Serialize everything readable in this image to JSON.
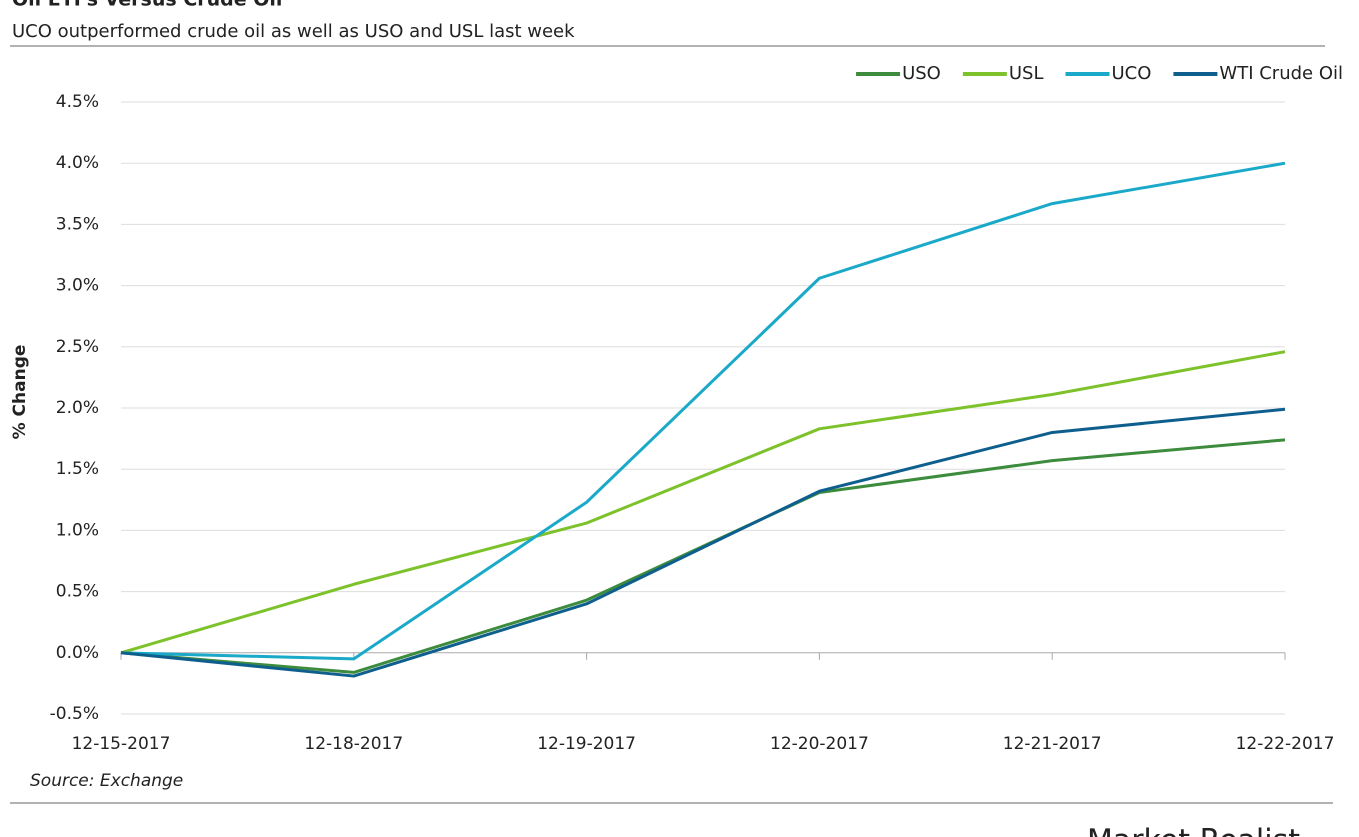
{
  "chart_data": {
    "type": "line",
    "title": "Oil ETFs Versus Crude Oil",
    "subtitle": "UCO outperformed crude oil as well as USO and USL last week",
    "y_label": "% Change",
    "source": "Source: Exchange",
    "watermark": "Market Realist",
    "categories": [
      "12-15-2017",
      "12-18-2017",
      "12-19-2017",
      "12-20-2017",
      "12-21-2017",
      "12-22-2017"
    ],
    "series": [
      {
        "name": "USO",
        "color": "#3d8b3d",
        "values": [
          0,
          -0.16,
          0.43,
          1.31,
          1.57,
          1.74
        ]
      },
      {
        "name": "USL",
        "color": "#7dc22a",
        "values": [
          0,
          0.56,
          1.06,
          1.83,
          2.11,
          2.46
        ]
      },
      {
        "name": "UCO",
        "color": "#1aa9c9",
        "values": [
          0,
          -0.05,
          1.23,
          3.06,
          3.67,
          4.0
        ]
      },
      {
        "name": "WTI Crude Oil",
        "color": "#0e5f8e",
        "values": [
          0,
          -0.19,
          0.4,
          1.32,
          1.8,
          1.99
        ]
      }
    ],
    "ylim": [
      -0.5,
      4.5
    ],
    "yticks": [
      {
        "value": -0.5,
        "label": "-0.5%"
      },
      {
        "value": 0,
        "label": "0.0%"
      },
      {
        "value": 0.5,
        "label": "0.5%"
      },
      {
        "value": 1,
        "label": "1.0%"
      },
      {
        "value": 1.5,
        "label": "1.5%"
      },
      {
        "value": 2,
        "label": "2.0%"
      },
      {
        "value": 2.5,
        "label": "2.5%"
      },
      {
        "value": 3,
        "label": "3.0%"
      },
      {
        "value": 3.5,
        "label": "3.5%"
      },
      {
        "value": 4,
        "label": "4.0%"
      },
      {
        "value": 4.5,
        "label": "4.5%"
      }
    ],
    "grid": true,
    "legend": "top-right"
  }
}
